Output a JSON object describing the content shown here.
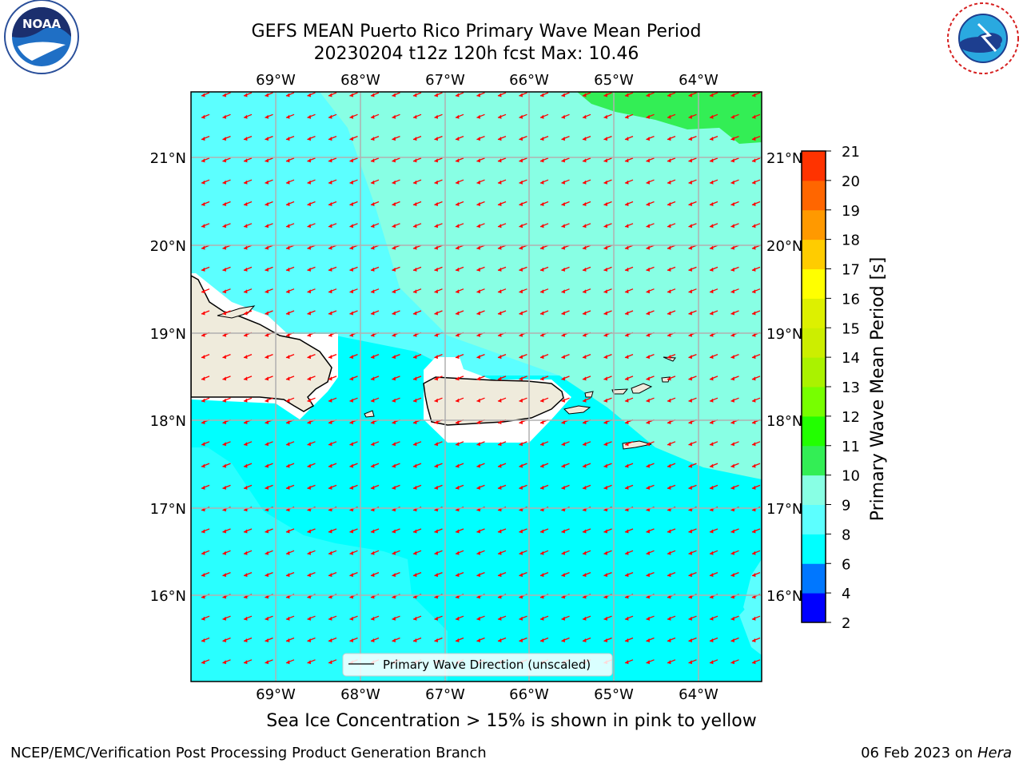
{
  "title_line1": "GEFS MEAN Puerto Rico Primary Wave Mean Period",
  "title_line2": "20230204 t12z 120h fcst   Max: 10.46",
  "logos": {
    "left": {
      "icon": "noaa-logo",
      "text": "NOAA"
    },
    "right": {
      "icon": "nws-logo",
      "text": "NATIONAL WEATHER SERVICE"
    }
  },
  "map": {
    "lon_labels": [
      "69°W",
      "68°W",
      "67°W",
      "66°W",
      "65°W",
      "64°W"
    ],
    "lat_labels": [
      "21°N",
      "20°N",
      "19°N",
      "18°N",
      "17°N",
      "16°N"
    ],
    "vector_color": "#ff0000",
    "land_color": "#efebdc",
    "legend_label": "Primary Wave Direction (unscaled)"
  },
  "colorbar": {
    "label": "Primary Wave Mean Period [s]",
    "ticks": [
      "2",
      "4",
      "6",
      "8",
      "9",
      "10",
      "11",
      "12",
      "13",
      "14",
      "15",
      "16",
      "17",
      "18",
      "19",
      "20",
      "21"
    ],
    "colors": [
      "#0000ff",
      "#0077ff",
      "#00ffff",
      "#5cffff",
      "#88ffe4",
      "#33ee55",
      "#22ff00",
      "#77ff00",
      "#aaf200",
      "#ccee00",
      "#ddf000",
      "#ffff00",
      "#ffcc00",
      "#ff9900",
      "#ff6600",
      "#ff3300",
      "#ff0000"
    ]
  },
  "note": "Sea Ice Concentration > 15% is shown in pink to yellow",
  "footer": {
    "left": "NCEP/EMC/Verification Post Processing Product Generation Branch",
    "right_date": "06 Feb 2023 on ",
    "right_host": "Hera"
  }
}
